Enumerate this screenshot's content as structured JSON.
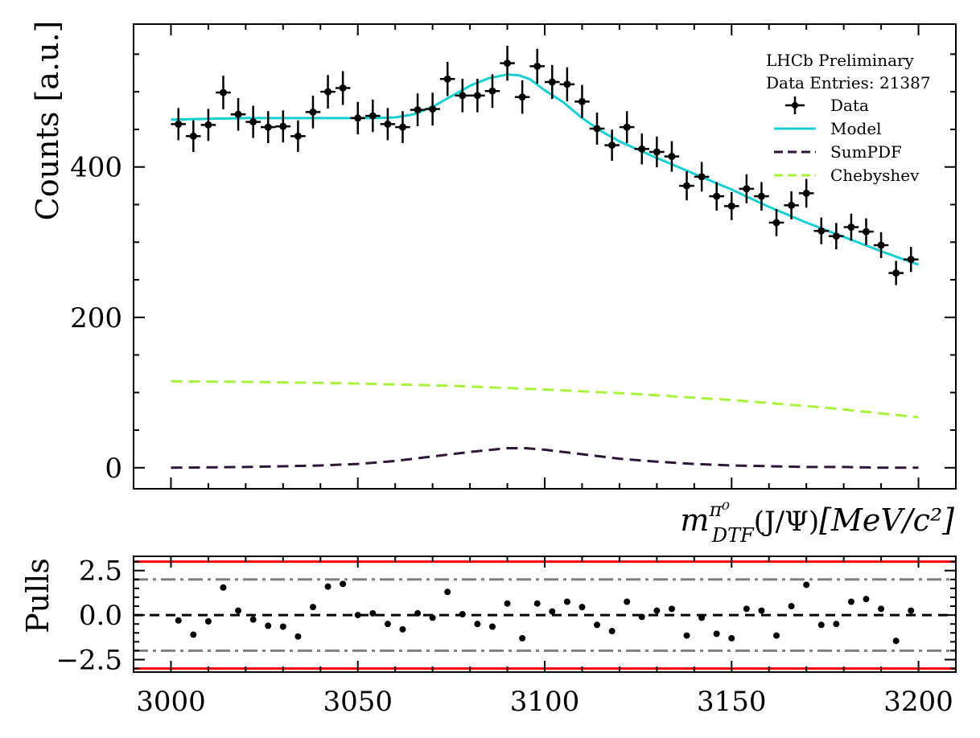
{
  "chart_data": [
    {
      "type": "scatter",
      "panel": "main",
      "ylabel": "Counts [a.u.]",
      "xlabel_parts": {
        "m": "m",
        "sup": "π⁰",
        "sub": "DTF",
        "paren": "(J/Ψ)",
        "units": "[MeV/c²]"
      },
      "annotation": [
        "LHCb Preliminary",
        "Data Entries: 21387"
      ],
      "legend": [
        "Data",
        "Model",
        "SumPDF",
        "Chebyshev"
      ],
      "legend_placement": "top-right",
      "xlim": [
        2990,
        3210
      ],
      "ylim": [
        -28,
        590
      ],
      "y_ticks": [
        0,
        200,
        400
      ],
      "y_tick_labels": [
        "0",
        "200",
        "400"
      ],
      "grid": false,
      "colors": {
        "data": "#000000",
        "model": "#17cfd1",
        "sumpdf": "#2d1636",
        "chebyshev": "#a8f23c"
      },
      "data_points": {
        "x": [
          3002,
          3006,
          3010,
          3014,
          3018,
          3022,
          3026,
          3030,
          3034,
          3038,
          3042,
          3046,
          3050,
          3054,
          3058,
          3062,
          3066,
          3070,
          3074,
          3078,
          3082,
          3086,
          3090,
          3094,
          3098,
          3102,
          3106,
          3110,
          3114,
          3118,
          3122,
          3126,
          3130,
          3134,
          3138,
          3142,
          3146,
          3150,
          3154,
          3158,
          3162,
          3166,
          3170,
          3174,
          3178,
          3182,
          3186,
          3190,
          3194,
          3198
        ],
        "y": [
          457,
          441,
          456,
          499,
          470,
          460,
          453,
          454,
          441,
          473,
          500,
          505,
          465,
          468,
          457,
          453,
          476,
          477,
          517,
          495,
          495,
          501,
          538,
          493,
          534,
          513,
          510,
          487,
          451,
          429,
          453,
          424,
          420,
          414,
          375,
          387,
          361,
          348,
          371,
          361,
          326,
          349,
          365,
          315,
          308,
          320,
          314,
          296,
          259,
          277
        ],
        "x_error": 2
      },
      "series": [
        {
          "name": "Model",
          "style": "solid",
          "x": [
            3000,
            3010,
            3020,
            3030,
            3040,
            3050,
            3055,
            3060,
            3065,
            3070,
            3075,
            3080,
            3085,
            3090,
            3093,
            3096,
            3100,
            3105,
            3110,
            3115,
            3120,
            3130,
            3140,
            3150,
            3160,
            3170,
            3180,
            3190,
            3200
          ],
          "y": [
            463,
            464,
            465,
            465,
            465,
            465,
            465,
            466,
            470,
            480,
            494,
            508,
            518,
            523,
            522,
            517,
            502,
            486,
            465,
            448,
            434,
            412,
            391,
            370,
            347,
            326,
            307,
            288,
            270
          ]
        },
        {
          "name": "SumPDF",
          "style": "dashed",
          "x": [
            3000,
            3020,
            3040,
            3050,
            3060,
            3070,
            3080,
            3090,
            3095,
            3100,
            3110,
            3120,
            3130,
            3140,
            3150,
            3160,
            3170,
            3180,
            3190,
            3200
          ],
          "y": [
            0,
            1,
            3,
            5,
            9,
            15,
            21,
            26,
            26,
            24,
            18,
            12,
            8,
            5,
            3,
            2,
            1,
            1,
            0,
            0
          ]
        },
        {
          "name": "Chebyshev",
          "style": "dashed",
          "x": [
            3000,
            3025,
            3050,
            3075,
            3100,
            3125,
            3150,
            3175,
            3200
          ],
          "y": [
            115,
            114,
            112,
            109,
            104,
            98,
            90,
            80,
            67
          ]
        }
      ]
    },
    {
      "type": "scatter",
      "panel": "pulls",
      "ylabel": "Pulls",
      "xlim": [
        2990,
        3210
      ],
      "ylim": [
        -3.2,
        3.3
      ],
      "x_ticks": [
        3000,
        3050,
        3100,
        3150,
        3200
      ],
      "x_tick_labels": [
        "3000",
        "3050",
        "3100",
        "3150",
        "3200"
      ],
      "y_ticks": [
        -2.5,
        0,
        2.5
      ],
      "y_tick_labels": [
        "−2.5",
        "0.0",
        "2.5"
      ],
      "reference_lines": [
        {
          "y": 3,
          "style": "solid",
          "color": "#ff0000"
        },
        {
          "y": -3,
          "style": "solid",
          "color": "#ff0000"
        },
        {
          "y": 2,
          "style": "dashdot",
          "color": "#808080"
        },
        {
          "y": -2,
          "style": "dashdot",
          "color": "#808080"
        },
        {
          "y": 0,
          "style": "dashed",
          "color": "#000000"
        }
      ],
      "points": {
        "x": [
          3002,
          3006,
          3010,
          3014,
          3018,
          3022,
          3026,
          3030,
          3034,
          3038,
          3042,
          3046,
          3050,
          3054,
          3058,
          3062,
          3066,
          3070,
          3074,
          3078,
          3082,
          3086,
          3090,
          3094,
          3098,
          3102,
          3106,
          3110,
          3114,
          3118,
          3122,
          3126,
          3130,
          3134,
          3138,
          3142,
          3146,
          3150,
          3154,
          3158,
          3162,
          3166,
          3170,
          3174,
          3178,
          3182,
          3186,
          3190,
          3194,
          3198
        ],
        "y": [
          -0.3,
          -1.1,
          -0.35,
          1.55,
          0.25,
          -0.25,
          -0.6,
          -0.65,
          -1.2,
          0.45,
          1.6,
          1.75,
          0.0,
          0.1,
          -0.5,
          -0.8,
          0.1,
          -0.15,
          1.3,
          0.05,
          -0.5,
          -0.65,
          0.65,
          -1.3,
          0.65,
          0.2,
          0.75,
          0.45,
          -0.55,
          -0.9,
          0.75,
          -0.1,
          0.25,
          0.35,
          -1.15,
          -0.15,
          -1.05,
          -1.3,
          0.35,
          0.25,
          -1.15,
          0.5,
          1.7,
          -0.55,
          -0.5,
          0.75,
          0.9,
          0.35,
          -1.45,
          0.25
        ]
      }
    }
  ]
}
